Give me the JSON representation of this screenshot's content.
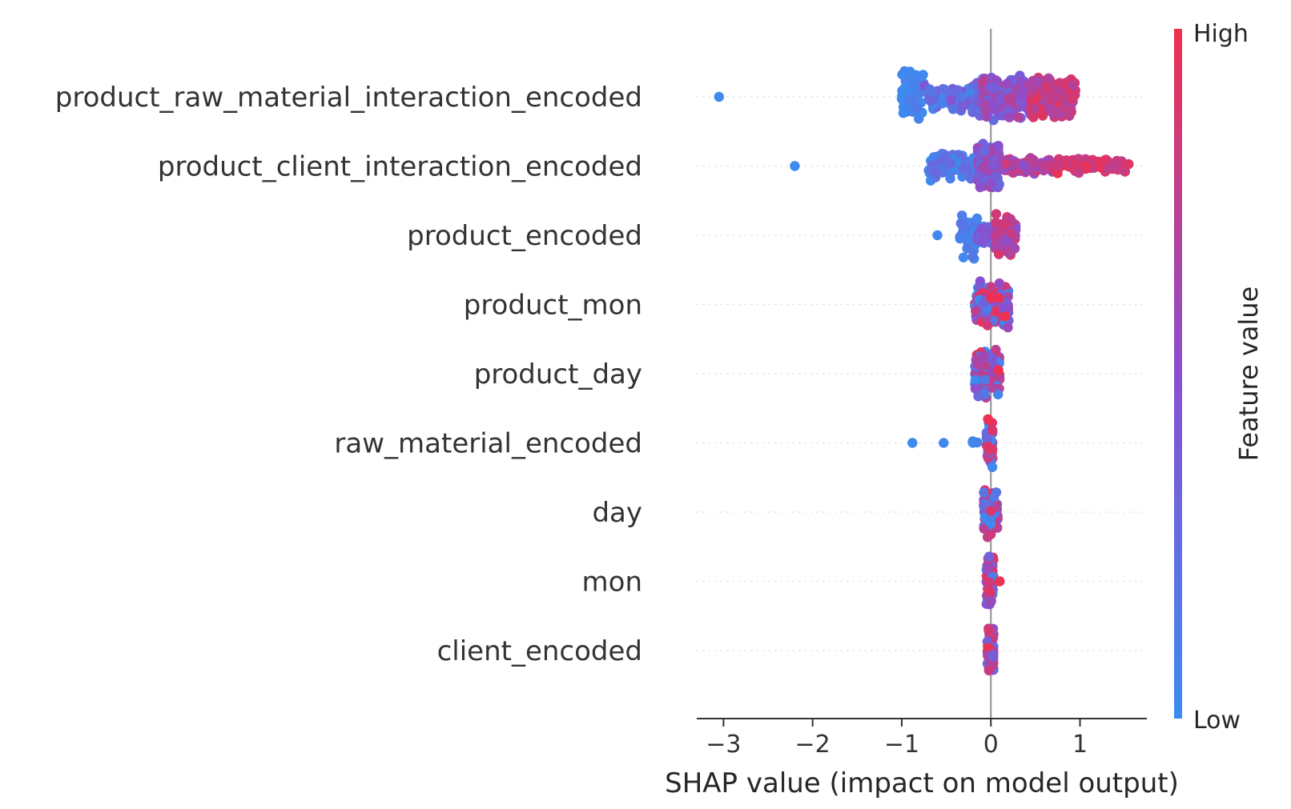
{
  "chart_data": {
    "type": "scatter",
    "subtype": "shap-beeswarm",
    "xlabel": "SHAP value (impact on model output)",
    "xlim": [
      -3.3,
      1.75
    ],
    "xticks": [
      -3,
      -2,
      -1,
      0,
      1
    ],
    "xtick_labels": [
      "−3",
      "−2",
      "−1",
      "0",
      "1"
    ],
    "features": [
      "product_raw_material_interaction_encoded",
      "product_client_interaction_encoded",
      "product_encoded",
      "product_mon",
      "product_day",
      "raw_material_encoded",
      "day",
      "mon",
      "client_encoded"
    ],
    "colorbar": {
      "label": "Feature value",
      "high_label": "High",
      "low_label": "Low",
      "low_color": "#3b8cf0",
      "high_color": "#f0304f"
    },
    "series": [
      {
        "feature": "product_raw_material_interaction_encoded",
        "clusters": [
          {
            "x": [
              -0.4,
              0.35
            ],
            "n": 40,
            "spread": 0.9,
            "fv": [
              0.0,
              0.5
            ]
          },
          {
            "x": [
              -1.0,
              -0.75
            ],
            "n": 70,
            "spread": 1.0,
            "fv": [
              0.0,
              0.15
            ]
          },
          {
            "x": [
              -0.75,
              -0.1
            ],
            "n": 90,
            "spread": 0.55,
            "fv": [
              0.05,
              0.5
            ]
          },
          {
            "x": [
              -0.1,
              0.45
            ],
            "n": 140,
            "spread": 0.85,
            "fv": [
              0.35,
              0.75
            ]
          },
          {
            "x": [
              0.45,
              0.95
            ],
            "n": 130,
            "spread": 0.85,
            "fv": [
              0.6,
              1.0
            ]
          }
        ],
        "outliers": [
          {
            "x": -3.05,
            "fv": 0.02
          }
        ]
      },
      {
        "feature": "product_client_interaction_encoded",
        "clusters": [
          {
            "x": [
              -0.7,
              -0.15
            ],
            "n": 90,
            "spread": 0.55,
            "fv": [
              0.0,
              0.3
            ]
          },
          {
            "x": [
              -0.15,
              0.1
            ],
            "n": 110,
            "spread": 1.0,
            "fv": [
              0.25,
              0.65
            ]
          },
          {
            "x": [
              0.1,
              0.7
            ],
            "n": 90,
            "spread": 0.3,
            "fv": [
              0.5,
              0.85
            ]
          },
          {
            "x": [
              0.7,
              1.55
            ],
            "n": 90,
            "spread": 0.3,
            "fv": [
              0.75,
              1.0
            ]
          }
        ],
        "outliers": [
          {
            "x": -2.2,
            "fv": 0.02
          }
        ]
      },
      {
        "feature": "product_encoded",
        "clusters": [
          {
            "x": [
              -0.35,
              -0.15
            ],
            "n": 50,
            "spread": 0.9,
            "fv": [
              0.0,
              0.2
            ]
          },
          {
            "x": [
              -0.15,
              0.05
            ],
            "n": 45,
            "spread": 0.4,
            "fv": [
              0.2,
              0.55
            ]
          },
          {
            "x": [
              0.05,
              0.28
            ],
            "n": 80,
            "spread": 0.85,
            "fv": [
              0.45,
              0.9
            ]
          }
        ],
        "outliers": [
          {
            "x": -0.6,
            "fv": 0.03
          }
        ]
      },
      {
        "feature": "product_mon",
        "clusters": [
          {
            "x": [
              -0.18,
              0.2
            ],
            "n": 130,
            "spread": 0.95,
            "fv": [
              0.0,
              1.0
            ]
          }
        ],
        "outliers": []
      },
      {
        "feature": "product_day",
        "clusters": [
          {
            "x": [
              -0.18,
              0.1
            ],
            "n": 110,
            "spread": 0.95,
            "fv": [
              0.0,
              1.0
            ]
          }
        ],
        "outliers": []
      },
      {
        "feature": "raw_material_encoded",
        "clusters": [
          {
            "x": [
              -0.05,
              0.02
            ],
            "n": 70,
            "spread": 1.0,
            "fv": [
              0.0,
              1.0
            ]
          },
          {
            "x": [
              -0.22,
              -0.12
            ],
            "n": 3,
            "spread": 0.1,
            "fv": [
              0.0,
              0.1
            ]
          }
        ],
        "outliers": [
          {
            "x": -0.88,
            "fv": 0.02
          },
          {
            "x": -0.53,
            "fv": 0.03
          }
        ]
      },
      {
        "feature": "day",
        "clusters": [
          {
            "x": [
              -0.08,
              0.08
            ],
            "n": 80,
            "spread": 1.0,
            "fv": [
              0.0,
              1.0
            ]
          }
        ],
        "outliers": []
      },
      {
        "feature": "mon",
        "clusters": [
          {
            "x": [
              -0.05,
              0.03
            ],
            "n": 80,
            "spread": 1.0,
            "fv": [
              0.0,
              1.0
            ]
          }
        ],
        "outliers": [
          {
            "x": 0.1,
            "fv": 0.97
          }
        ]
      },
      {
        "feature": "client_encoded",
        "clusters": [
          {
            "x": [
              -0.04,
              0.03
            ],
            "n": 80,
            "spread": 1.0,
            "fv": [
              0.2,
              1.0
            ]
          }
        ],
        "outliers": []
      }
    ]
  }
}
